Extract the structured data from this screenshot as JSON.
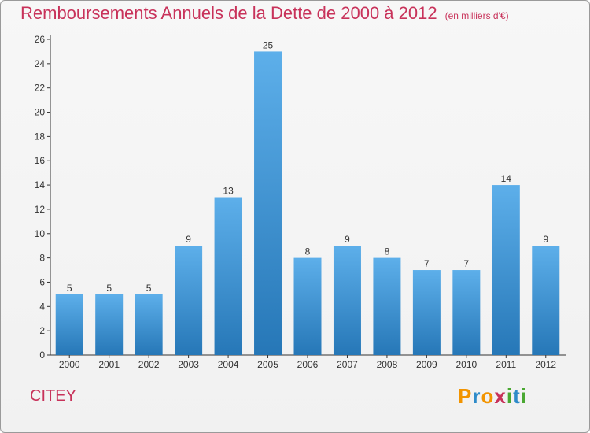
{
  "title": "Remboursements Annuels de la Dette de 2000 à 2012",
  "unit_note": "(en milliers d'€)",
  "commune": "CITEY",
  "logo": "Proxiti",
  "colors": {
    "title": "#c8325a",
    "bar_light": "#5dafea",
    "bar_dark": "#2677b7",
    "axis": "#333333"
  },
  "chart_data": {
    "type": "bar",
    "title": "Remboursements Annuels de la Dette de 2000 à 2012",
    "categories": [
      "2000",
      "2001",
      "2002",
      "2003",
      "2004",
      "2005",
      "2006",
      "2007",
      "2008",
      "2009",
      "2010",
      "2011",
      "2012"
    ],
    "values": [
      5,
      5,
      5,
      9,
      13,
      25,
      8,
      9,
      8,
      7,
      7,
      14,
      9
    ],
    "ylim": [
      0,
      26
    ],
    "yticks": [
      0,
      2,
      4,
      6,
      8,
      10,
      12,
      14,
      16,
      18,
      20,
      22,
      24,
      26
    ],
    "grid": false,
    "legend": "none"
  }
}
